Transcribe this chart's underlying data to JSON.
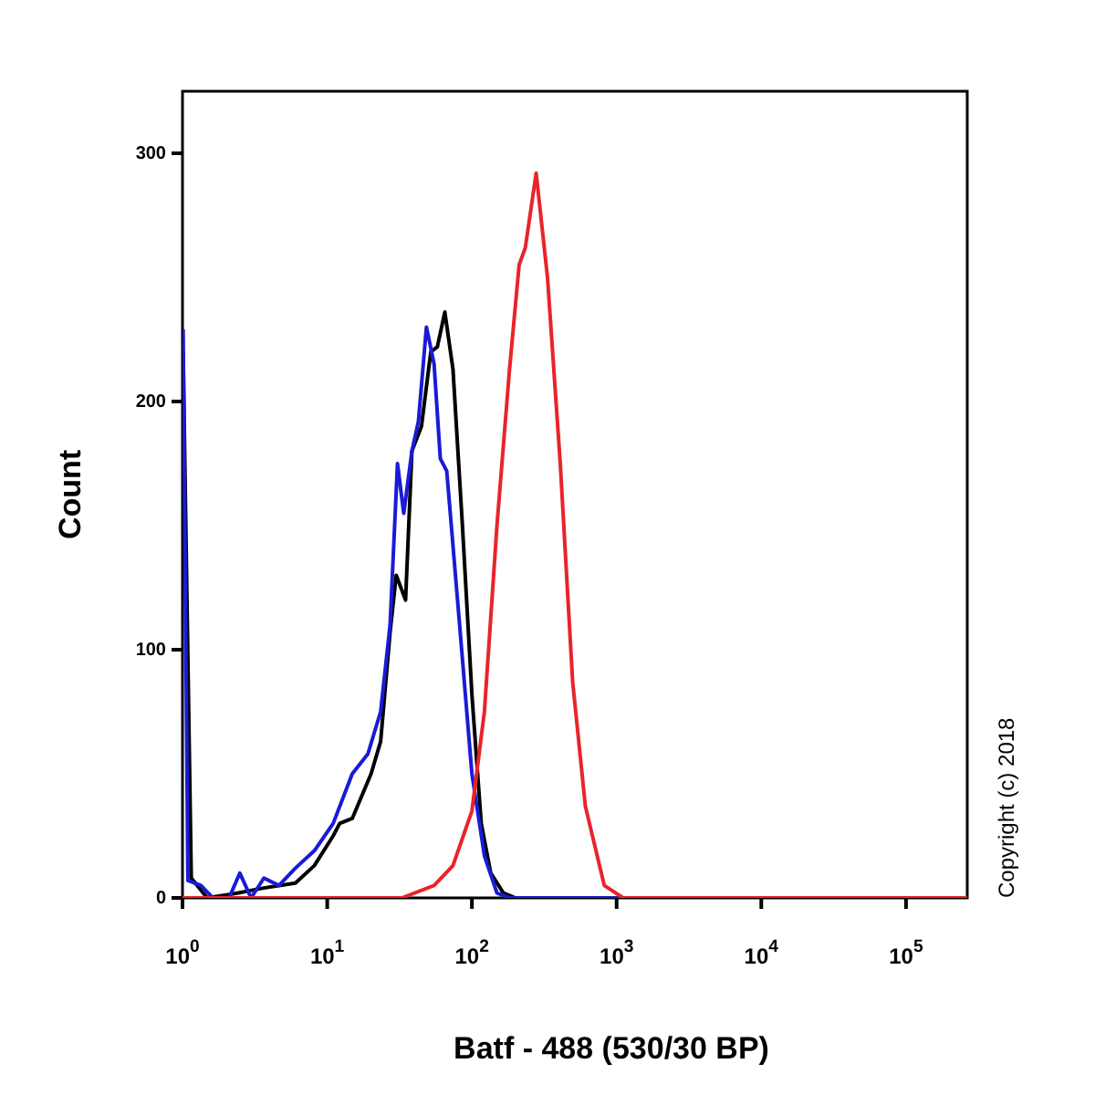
{
  "chart_data": {
    "type": "line",
    "xlabel": "Batf - 488 (530/30 BP)",
    "ylabel": "Count",
    "log": "x",
    "grid": false,
    "legend": false,
    "marker": "none",
    "line_style": "solid",
    "xlim": [
      1,
      265000
    ],
    "ylim": [
      0,
      325
    ],
    "xticks": [
      {
        "value": 1,
        "label": "10$^{0}$"
      },
      {
        "value": 10,
        "label": "10$^{1}$"
      },
      {
        "value": 100,
        "label": "10$^{2}$"
      },
      {
        "value": 1000,
        "label": "10$^{3}$"
      },
      {
        "value": 10000,
        "label": "10$^{4}$"
      },
      {
        "value": 100000,
        "label": "10$^{5}$"
      }
    ],
    "yticks": [
      0,
      100,
      200,
      300
    ],
    "annotations": [
      "Copyright (c) 2018"
    ],
    "series": [
      {
        "color": "#000000",
        "x": [
          1.01,
          1.15,
          1.48,
          2.44,
          3.65,
          6.03,
          8.15,
          11,
          12.2,
          14.9,
          20.1,
          23.4,
          27.2,
          30,
          34.8,
          38.5,
          44.8,
          52,
          57.7,
          65,
          74,
          86,
          100,
          116,
          135,
          165,
          200,
          265000
        ],
        "values": [
          220,
          8,
          0,
          2,
          4,
          6,
          13,
          25,
          30,
          32,
          50,
          63,
          107,
          130,
          120,
          180,
          190,
          220,
          222,
          236,
          213,
          150,
          82,
          30,
          10,
          2,
          0,
          0
        ]
      },
      {
        "color": "#1a1ad6",
        "x": [
          1.01,
          1.09,
          1.34,
          1.62,
          2.1,
          2.49,
          2.98,
          3.65,
          4.64,
          6.03,
          8.15,
          11,
          14.9,
          19.1,
          23.4,
          27.2,
          30.6,
          33.8,
          38.5,
          42.7,
          48.5,
          54.8,
          60.5,
          67,
          81.7,
          100,
          122,
          149,
          182,
          265000
        ],
        "values": [
          229,
          7,
          5,
          0,
          0,
          10,
          0,
          8,
          5,
          12,
          19,
          30,
          50,
          58,
          75,
          110,
          175,
          155,
          180,
          192,
          230,
          215,
          177,
          172,
          112,
          50,
          17,
          2,
          0,
          0
        ]
      },
      {
        "color": "#e8242a",
        "x": [
          1,
          32.8,
          54.8,
          74,
          100,
          122,
          149,
          182,
          212,
          234,
          278,
          333,
          408,
          497,
          608,
          822,
          1110,
          265000
        ],
        "values": [
          0,
          0,
          5,
          13,
          35,
          75,
          150,
          213,
          255,
          262,
          292,
          250,
          175,
          87,
          37,
          5,
          0,
          0
        ]
      }
    ]
  }
}
